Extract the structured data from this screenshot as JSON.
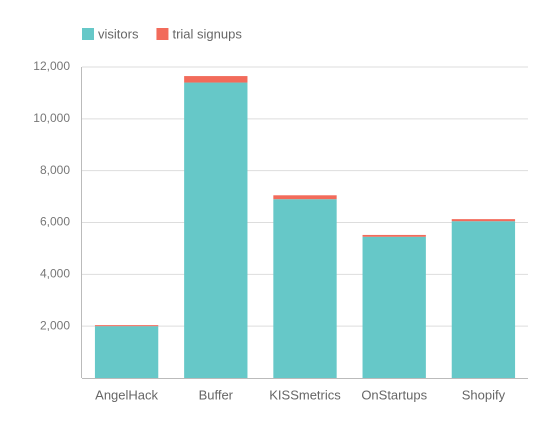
{
  "chart_data": {
    "type": "stacked-bar",
    "categories": [
      "AngelHack",
      "Buffer",
      "KISSmetrics",
      "OnStartups",
      "Shopify"
    ],
    "series": [
      {
        "name": "visitors",
        "color": "#66c8c8",
        "values": [
          2000,
          11400,
          6900,
          5450,
          6050
        ]
      },
      {
        "name": "trial signups",
        "color": "#f26b5b",
        "values": [
          40,
          250,
          150,
          70,
          80
        ]
      }
    ],
    "ylim": [
      0,
      12000
    ],
    "yticks": [
      {
        "value": 2000,
        "label": "2,000"
      },
      {
        "value": 4000,
        "label": "4,000"
      },
      {
        "value": 6000,
        "label": "6,000"
      },
      {
        "value": 8000,
        "label": "8,000"
      },
      {
        "value": 10000,
        "label": "10,000"
      },
      {
        "value": 12000,
        "label": "12,000"
      }
    ],
    "grid": true
  }
}
